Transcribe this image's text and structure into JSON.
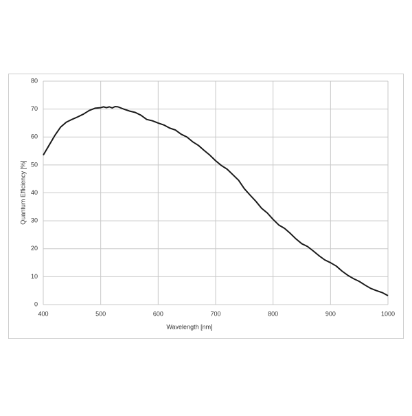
{
  "chart_data": {
    "type": "line",
    "x_label": "Wavelength [nm]",
    "y_label": "Quantum Efficiency [%]",
    "x": [
      400,
      410,
      420,
      430,
      440,
      450,
      460,
      470,
      480,
      490,
      500,
      505,
      510,
      515,
      520,
      525,
      530,
      540,
      550,
      560,
      570,
      580,
      590,
      600,
      610,
      620,
      630,
      640,
      650,
      660,
      670,
      680,
      690,
      700,
      710,
      720,
      730,
      740,
      750,
      760,
      770,
      780,
      790,
      800,
      810,
      820,
      830,
      840,
      850,
      860,
      870,
      880,
      890,
      900,
      910,
      920,
      930,
      940,
      950,
      960,
      970,
      980,
      990,
      1000
    ],
    "series": [
      {
        "name": "Quantum Efficiency",
        "color": "#1a1a1a",
        "values": [
          53.5,
          57,
          60.5,
          63.5,
          65.3,
          66.3,
          67.2,
          68.2,
          69.5,
          70.3,
          70.5,
          70.8,
          70.5,
          70.8,
          70.4,
          70.9,
          70.8,
          70,
          69.3,
          68.8,
          67.8,
          66.3,
          65.8,
          65,
          64.3,
          63.2,
          62.5,
          61,
          60,
          58.3,
          57,
          55.2,
          53.5,
          51.5,
          49.8,
          48.5,
          46.5,
          44.5,
          41.5,
          39.2,
          37,
          34.5,
          32.8,
          30.5,
          28.5,
          27.3,
          25.5,
          23.5,
          21.8,
          20.8,
          19.2,
          17.5,
          16,
          15,
          13.8,
          12,
          10.5,
          9.3,
          8.3,
          7,
          5.8,
          5,
          4.3,
          3.2
        ]
      }
    ],
    "xlim": [
      400,
      1000
    ],
    "xticks": [
      400,
      500,
      600,
      700,
      800,
      900,
      1000
    ],
    "ylim": [
      0,
      80
    ],
    "yticks": [
      0,
      10,
      20,
      30,
      40,
      50,
      60,
      70,
      80
    ],
    "grid": true
  }
}
